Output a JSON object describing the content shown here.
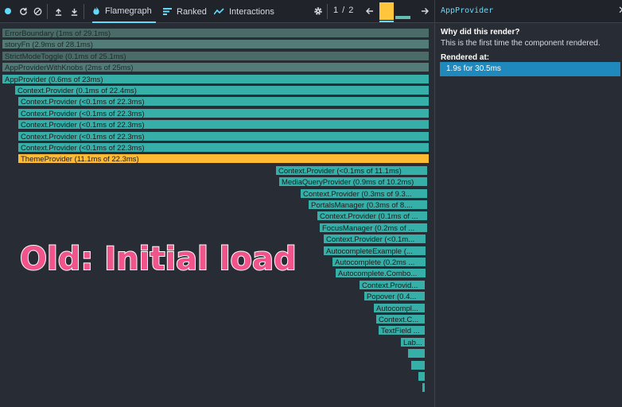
{
  "toolbar": {
    "record_icon": "record-dot-icon",
    "reload_icon": "reload-icon",
    "clear_icon": "clear-icon",
    "import_icon": "upload-icon",
    "export_icon": "download-icon",
    "tabs": [
      {
        "label": "Flamegraph",
        "icon": "flame-icon",
        "active": true
      },
      {
        "label": "Ranked",
        "icon": "ranked-icon",
        "active": false
      },
      {
        "label": "Interactions",
        "icon": "interactions-icon",
        "active": false
      }
    ],
    "settings_icon": "gear-icon",
    "commit_counter": "1 / 2",
    "prev_icon": "arrow-left-icon",
    "next_icon": "arrow-right-icon"
  },
  "sidebar": {
    "title": "AppProvider",
    "close_glyph": "✕",
    "why_label": "Why did this render?",
    "why_text": "This is the first time the component rendered.",
    "rendered_label": "Rendered at:",
    "render_entries": [
      "1.9s for 30.5ms"
    ]
  },
  "flamegraph": {
    "bars": [
      {
        "label": "ErrorBoundary (1ms of 29.1ms)",
        "style": "dim"
      },
      {
        "label": "storyFn (2.9ms of 28.1ms)",
        "style": "dim2"
      },
      {
        "label": "StrictModeToggle (0.1ms of 25.1ms)",
        "style": "dim"
      },
      {
        "label": "AppProviderWithKnobs (2ms of 25ms)",
        "style": "dim2"
      },
      {
        "label": "AppProvider (0.6ms of 23ms)",
        "style": "teal"
      },
      {
        "label": "Context.Provider (0.1ms of 22.4ms)",
        "style": "teal"
      },
      {
        "label": "Context.Provider (<0.1ms of 22.3ms)",
        "style": "teal"
      },
      {
        "label": "Context.Provider (<0.1ms of 22.3ms)",
        "style": "teal"
      },
      {
        "label": "Context.Provider (<0.1ms of 22.3ms)",
        "style": "teal"
      },
      {
        "label": "Context.Provider (<0.1ms of 22.3ms)",
        "style": "teal"
      },
      {
        "label": "Context.Provider (<0.1ms of 22.3ms)",
        "style": "teal"
      },
      {
        "label": "ThemeProvider (11.1ms of 22.3ms)",
        "style": "gold"
      },
      {
        "label": "Context.Provider (<0.1ms of 11.1ms)",
        "style": "teal"
      },
      {
        "label": "MediaQueryProvider (0.9ms of 10.2ms)",
        "style": "teal"
      },
      {
        "label": "Context.Provider (0.3ms of 9.3...",
        "style": "teal"
      },
      {
        "label": "PortalsManager (0.3ms of 8....",
        "style": "teal"
      },
      {
        "label": "Context.Provider (0.1ms of ...",
        "style": "teal"
      },
      {
        "label": "FocusManager (0.2ms of ...",
        "style": "teal"
      },
      {
        "label": "Context.Provider (<0.1m...",
        "style": "teal"
      },
      {
        "label": "AutocompleteExample (...",
        "style": "teal"
      },
      {
        "label": "Autocomplete (0.2ms ...",
        "style": "teal"
      },
      {
        "label": "Autocomplete.Combo...",
        "style": "teal"
      },
      {
        "label": "Context.Provid...",
        "style": "teal"
      },
      {
        "label": "Popover (0.4...",
        "style": "teal"
      },
      {
        "label": "Autocompl...",
        "style": "teal"
      },
      {
        "label": "Context.C...",
        "style": "teal"
      },
      {
        "label": "TextField ...",
        "style": "teal"
      },
      {
        "label": "Lab...",
        "style": "teal"
      },
      {
        "label": "",
        "style": "teal"
      },
      {
        "label": "",
        "style": "teal"
      },
      {
        "label": "",
        "style": "teal"
      },
      {
        "label": "",
        "style": "teal"
      }
    ]
  },
  "overlay": {
    "text": "Old: Initial load",
    "color": "#f0548a"
  },
  "colors": {
    "accent": "#61dafb",
    "selected_commit": "#ffc53d",
    "selected_bar": "#ffbb33",
    "bar": "#37afa9",
    "render_entry": "#1f88bd"
  }
}
